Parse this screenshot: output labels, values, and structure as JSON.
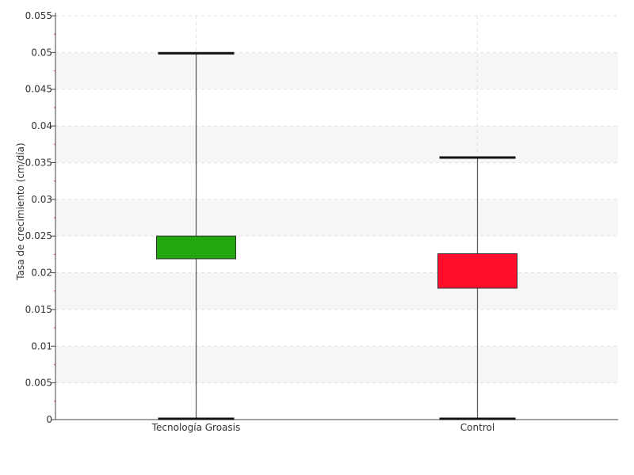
{
  "chart_data": {
    "type": "box",
    "title": "",
    "xlabel": "",
    "ylabel": "Tasa de crecimiento (cm/día)",
    "ylim": [
      0,
      0.055
    ],
    "yticks": [
      "0",
      "0.005",
      "0.01",
      "0.015",
      "0.02",
      "0.025",
      "0.03",
      "0.035",
      "0.04",
      "0.045",
      "0.05",
      "0.055"
    ],
    "grid": true,
    "categories": [
      "Tecnología Groasis",
      "Control"
    ],
    "series": [
      {
        "category": "Tecnología Groasis",
        "min": 0.0,
        "q1": 0.0219,
        "q3": 0.025,
        "max": 0.0499,
        "color": "#22a80e"
      },
      {
        "category": "Control",
        "min": 0.0,
        "q1": 0.0179,
        "q3": 0.0226,
        "max": 0.0357,
        "color": "#ff0e2c"
      }
    ]
  }
}
